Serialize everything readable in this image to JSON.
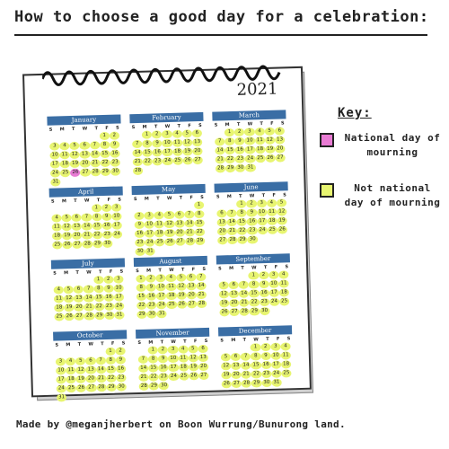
{
  "title": "How to choose a good day for a celebration:",
  "year": "2021",
  "weekday_letters": [
    "S",
    "M",
    "T",
    "W",
    "T",
    "F",
    "S"
  ],
  "colors": {
    "mourning": "#e87bd3",
    "not_mourning": "#e8f571",
    "month_header": "#3a6ea5"
  },
  "months": [
    {
      "name": "January",
      "offset": 5,
      "days": 31
    },
    {
      "name": "February",
      "offset": 1,
      "days": 28
    },
    {
      "name": "March",
      "offset": 1,
      "days": 31
    },
    {
      "name": "April",
      "offset": 4,
      "days": 30
    },
    {
      "name": "May",
      "offset": 6,
      "days": 31
    },
    {
      "name": "June",
      "offset": 2,
      "days": 30
    },
    {
      "name": "July",
      "offset": 4,
      "days": 31
    },
    {
      "name": "August",
      "offset": 0,
      "days": 31
    },
    {
      "name": "September",
      "offset": 3,
      "days": 30
    },
    {
      "name": "October",
      "offset": 5,
      "days": 31
    },
    {
      "name": "November",
      "offset": 1,
      "days": 30
    },
    {
      "name": "December",
      "offset": 3,
      "days": 31
    }
  ],
  "mourning_day": {
    "month": "January",
    "day": 26
  },
  "key": {
    "heading": "Key:",
    "mourning_label": "National day of mourning",
    "not_mourning_label": "Not national day of mourning"
  },
  "footer": "Made by @meganjherbert on Boon Wurrung/Bunurong land."
}
